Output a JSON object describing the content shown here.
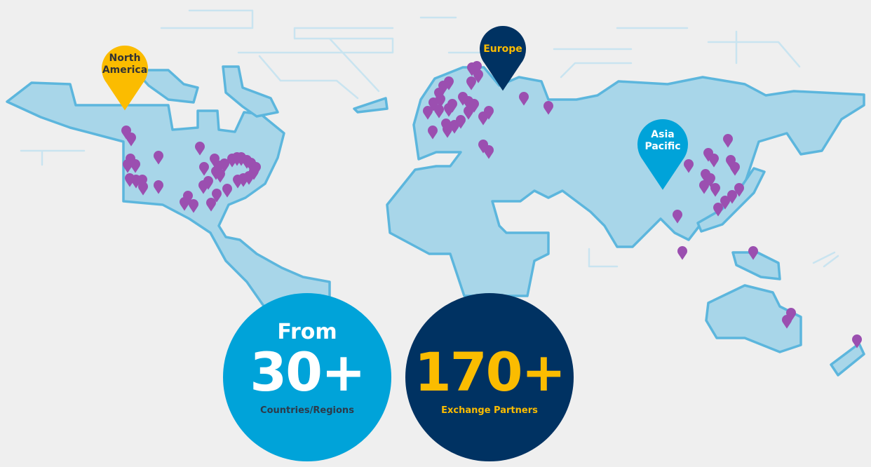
{
  "regions": [
    {
      "label": "North America",
      "color": "#fbbc00",
      "text_color": "#333333"
    },
    {
      "label": "Europe",
      "color": "#003262",
      "text_color": "#fbbc00"
    },
    {
      "label": "Asia Pacific",
      "color": "#00a3d9",
      "text_color": "#ffffff"
    }
  ],
  "stats": [
    {
      "lead": "From",
      "value": "30+",
      "caption": "Countries/Regions",
      "bg": "#00a3d9"
    },
    {
      "lead": "",
      "value": "170+",
      "caption": "Exchange Partners",
      "bg": "#003262"
    }
  ],
  "colors": {
    "background": "#efefef",
    "land": "#a8d6e9",
    "coast": "#5cb6dd",
    "partner_pin": "#9b4fb0",
    "accent_yellow": "#fbbc00"
  },
  "icons": {
    "partner_marker": "map-pin-icon"
  }
}
